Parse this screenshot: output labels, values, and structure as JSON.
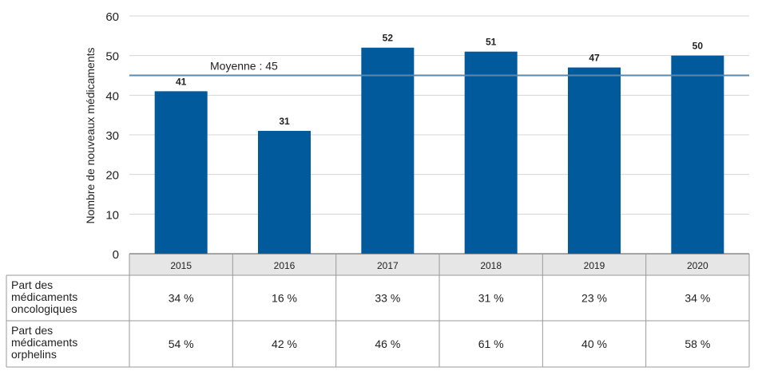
{
  "chart_data": {
    "type": "bar",
    "ylabel": "Nombre de nouveaux médicaments",
    "ylim": [
      0,
      60
    ],
    "yticks": [
      0,
      10,
      20,
      30,
      40,
      50,
      60
    ],
    "categories": [
      "2015",
      "2016",
      "2017",
      "2018",
      "2019",
      "2020"
    ],
    "values": [
      41,
      31,
      52,
      51,
      47,
      50
    ],
    "bar_color": "#005a9c",
    "average": {
      "label": "Moyenne : 45",
      "value": 45,
      "color": "#5b88ad"
    },
    "grid": true,
    "table": {
      "rows": [
        {
          "label": [
            "Part des",
            "médicaments",
            "oncologiques"
          ],
          "values": [
            "34 %",
            "16 %",
            "33 %",
            "31 %",
            "23 %",
            "34 %"
          ]
        },
        {
          "label": [
            "Part des",
            "médicaments",
            "orphelins"
          ],
          "values": [
            "54 %",
            "42 %",
            "46 %",
            "61 %",
            "40 %",
            "58 %"
          ]
        }
      ]
    }
  }
}
